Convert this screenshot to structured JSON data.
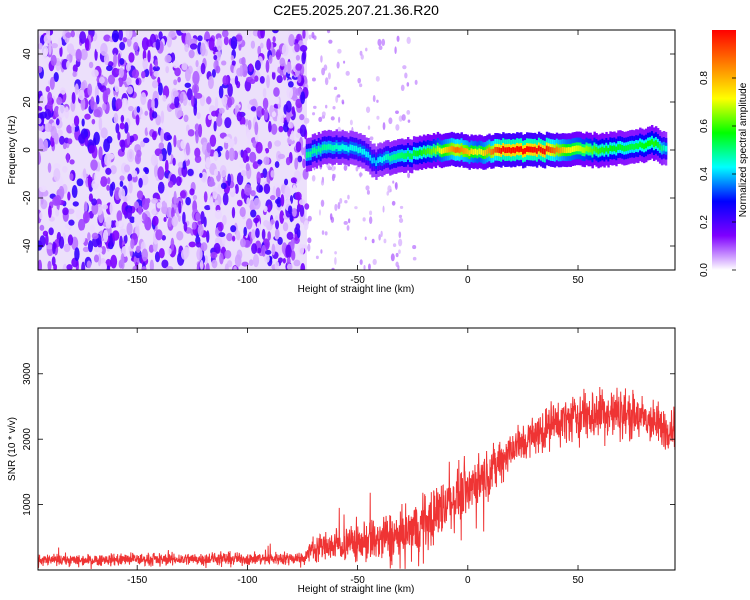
{
  "title": "C2E5.2025.207.21.36.R20",
  "chart_data": [
    {
      "type": "heatmap",
      "xlabel": "Height of straight line (km)",
      "ylabel": "Frequency (Hz)",
      "xlim": [
        -195,
        94
      ],
      "ylim": [
        -50,
        50
      ],
      "xticks": [
        -150,
        -100,
        -50,
        0,
        50
      ],
      "yticks": [
        -40,
        -20,
        0,
        20,
        40
      ],
      "colorbar": {
        "label": "Normalized spectral amplitude",
        "range": [
          0,
          1
        ],
        "ticks": [
          "0.0",
          "0.2",
          "0.4",
          "0.6",
          "0.8"
        ],
        "colors": [
          "#ffffff",
          "#7f00ff",
          "#0000ff",
          "#00ffff",
          "#00ff00",
          "#ffff00",
          "#ff7f00",
          "#ff0000"
        ]
      },
      "noise_region_x": [
        -195,
        -73
      ],
      "signal_trace": [
        {
          "x": -73,
          "freq": -2,
          "amp": 0.45
        },
        {
          "x": -65,
          "freq": 1,
          "amp": 0.45
        },
        {
          "x": -55,
          "freq": 1,
          "amp": 0.4
        },
        {
          "x": -48,
          "freq": 0,
          "amp": 0.4
        },
        {
          "x": -42,
          "freq": -5,
          "amp": 0.35
        },
        {
          "x": -35,
          "freq": -3,
          "amp": 0.45
        },
        {
          "x": -25,
          "freq": -2,
          "amp": 0.5
        },
        {
          "x": -15,
          "freq": 0,
          "amp": 0.6
        },
        {
          "x": -5,
          "freq": 0,
          "amp": 0.85
        },
        {
          "x": 5,
          "freq": -1,
          "amp": 0.65
        },
        {
          "x": 15,
          "freq": 0,
          "amp": 0.95
        },
        {
          "x": 35,
          "freq": 0,
          "amp": 0.95
        },
        {
          "x": 45,
          "freq": 0,
          "amp": 0.7
        },
        {
          "x": 60,
          "freq": 0,
          "amp": 0.55
        },
        {
          "x": 75,
          "freq": 1,
          "amp": 0.5
        },
        {
          "x": 85,
          "freq": 3,
          "amp": 0.55
        },
        {
          "x": 90,
          "freq": 0,
          "amp": 0.4
        }
      ]
    },
    {
      "type": "line",
      "xlabel": "Height of straight line (km)",
      "ylabel": "SNR (10 * v/v)",
      "xlim": [
        -195,
        94
      ],
      "ylim": [
        0,
        3700
      ],
      "xticks": [
        -150,
        -100,
        -50,
        0,
        50
      ],
      "yticks": [
        1000,
        2000,
        3000
      ],
      "color": "#ef3434",
      "series": [
        {
          "x": [
            -195,
            -180,
            -160,
            -140,
            -120,
            -100,
            -80,
            -74,
            -70,
            -60,
            -50,
            -40,
            -30,
            -20,
            -10,
            0,
            10,
            20,
            30,
            40,
            50,
            60,
            70,
            80,
            90,
            94
          ],
          "values": [
            150,
            150,
            160,
            160,
            170,
            170,
            180,
            190,
            350,
            380,
            420,
            470,
            520,
            700,
            1000,
            1250,
            1500,
            1850,
            2050,
            2250,
            2350,
            2400,
            2400,
            2300,
            2150,
            2200
          ],
          "noise": [
            80,
            80,
            85,
            85,
            90,
            90,
            90,
            100,
            180,
            220,
            280,
            330,
            380,
            420,
            400,
            380,
            320,
            300,
            280,
            300,
            350,
            380,
            350,
            320,
            300,
            300
          ]
        }
      ]
    }
  ]
}
